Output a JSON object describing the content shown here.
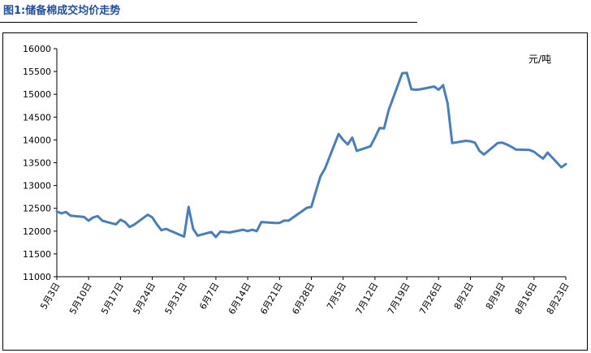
{
  "figure_title": "图1:储备棉成交均价走势",
  "chart_data": {
    "type": "line",
    "unit_label": "元/吨",
    "ylim": [
      11000,
      16000
    ],
    "yticks": [
      11000,
      11500,
      12000,
      12500,
      13000,
      13500,
      14000,
      14500,
      15000,
      15500,
      16000
    ],
    "xtick_labels": [
      "5月3日",
      "5月10日",
      "5月17日",
      "5月24日",
      "5月31日",
      "6月7日",
      "6月14日",
      "6月21日",
      "6月28日",
      "7月5日",
      "7月12日",
      "7月19日",
      "7月26日",
      "8月2日",
      "8月9日",
      "8月16日",
      "8月23日"
    ],
    "grid": false,
    "legend": "none",
    "line_color": "#4a7ebb",
    "series": [
      {
        "x": [
          "5月3日",
          "5月4日",
          "5月5日",
          "5月6日",
          "5月9日",
          "5月10日",
          "5月11日",
          "5月12日",
          "5月13日",
          "5月14日",
          "5月16日",
          "5月17日",
          "5月18日",
          "5月19日",
          "5月20日",
          "5月23日",
          "5月24日",
          "5月25日",
          "5月26日",
          "5月27日",
          "5月30日",
          "5月31日",
          "6月1日",
          "6月2日",
          "6月3日",
          "6月6日",
          "6月7日",
          "6月8日",
          "6月10日",
          "6月13日",
          "6月14日",
          "6月15日",
          "6月16日",
          "6月17日",
          "6月20日",
          "6月21日",
          "6月22日",
          "6月23日",
          "6月27日",
          "6月28日",
          "6月29日",
          "6月30日",
          "7月1日",
          "7月4日",
          "7月5日",
          "7月6日",
          "7月7日",
          "7月8日",
          "7月11日",
          "7月12日",
          "7月13日",
          "7月14日",
          "7月15日",
          "7月18日",
          "7月19日",
          "7月20日",
          "7月21日",
          "7月22日",
          "7月25日",
          "7月26日",
          "7月27日",
          "7月28日",
          "7月29日",
          "8月1日",
          "8月2日",
          "8月3日",
          "8月4日",
          "8月5日",
          "8月8日",
          "8月9日",
          "8月10日",
          "8月11日",
          "8月12日",
          "8月15日",
          "8月16日",
          "8月17日",
          "8月18日",
          "8月19日",
          "8月22日",
          "8月23日"
        ],
        "values": [
          12430,
          12390,
          12420,
          12340,
          12310,
          12230,
          12300,
          12330,
          12230,
          12200,
          12150,
          12250,
          12200,
          12090,
          12140,
          12360,
          12300,
          12150,
          12020,
          12050,
          11920,
          11880,
          12530,
          12050,
          11900,
          11980,
          11870,
          11990,
          11970,
          12030,
          12000,
          12030,
          12000,
          12200,
          12180,
          12180,
          12230,
          12230,
          12510,
          12530,
          12870,
          13200,
          13370,
          14130,
          14000,
          13900,
          14050,
          13760,
          13860,
          14050,
          14260,
          14250,
          14650,
          15460,
          15470,
          15110,
          15100,
          15110,
          15170,
          15100,
          15200,
          14800,
          13930,
          13980,
          13970,
          13940,
          13760,
          13680,
          13930,
          13940,
          13900,
          13850,
          13790,
          13780,
          13740,
          13660,
          13590,
          13720,
          13400,
          13470
        ]
      }
    ]
  }
}
